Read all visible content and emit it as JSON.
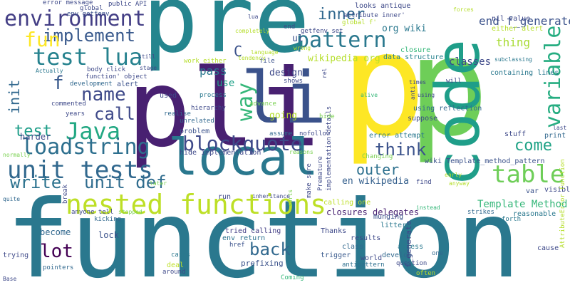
{
  "cloud": {
    "words": [
      {
        "text": "function",
        "color": "#2a788e",
        "vertical": false
      },
      {
        "text": "pli",
        "color": "#482071",
        "vertical": false
      },
      {
        "text": "pre",
        "color": "#25858e",
        "vertical": false
      },
      {
        "text": "p",
        "color": "#fde725",
        "vertical": false
      },
      {
        "text": "p",
        "color": "#6ece58",
        "vertical": false
      },
      {
        "text": "code",
        "color": "#1f9e89",
        "vertical": true
      },
      {
        "text": "local",
        "color": "#2a788e",
        "vertical": false
      },
      {
        "text": "li",
        "color": "#3b528b",
        "vertical": false
      },
      {
        "text": "nested functions",
        "color": "#bddf26",
        "vertical": false
      },
      {
        "text": "unit tests",
        "color": "#31688e",
        "vertical": false
      },
      {
        "text": "test lua",
        "color": "#26828e",
        "vertical": false
      },
      {
        "text": "environment",
        "color": "#433e85",
        "vertical": false
      },
      {
        "text": "Java",
        "color": "#23a883",
        "vertical": false
      },
      {
        "text": "blockquote",
        "color": "#3e4989",
        "vertical": false
      },
      {
        "text": "loadstring",
        "color": "#2d6f8e",
        "vertical": false
      },
      {
        "text": "table",
        "color": "#6ece58",
        "vertical": false
      },
      {
        "text": "variable",
        "color": "#26ad81",
        "vertical": true
      },
      {
        "text": "pattern",
        "color": "#2a788e",
        "vertical": false
      },
      {
        "text": "implement",
        "color": "#38598c",
        "vertical": false
      },
      {
        "text": "fun",
        "color": "#fde725",
        "vertical": false
      },
      {
        "text": "name",
        "color": "#3e4989",
        "vertical": false
      },
      {
        "text": "way",
        "color": "#35b779",
        "vertical": true
      },
      {
        "text": "think",
        "color": "#3b528b",
        "vertical": false
      },
      {
        "text": "back",
        "color": "#31688e",
        "vertical": false
      },
      {
        "text": "unit def",
        "color": "#2f6c8e",
        "vertical": false
      },
      {
        "text": "lot",
        "color": "#440154",
        "vertical": false
      },
      {
        "text": "call",
        "color": "#3e4989",
        "vertical": false
      },
      {
        "text": "inner",
        "color": "#31688e",
        "vertical": false
      },
      {
        "text": "outer",
        "color": "#2d708e",
        "vertical": false
      },
      {
        "text": "come",
        "color": "#20a386",
        "vertical": false
      },
      {
        "text": "end f_generate",
        "color": "#3b528b",
        "vertical": false
      },
      {
        "text": "write",
        "color": "#2c728e",
        "vertical": false
      },
      {
        "text": "test",
        "color": "#1f9e89",
        "vertical": false
      },
      {
        "text": "init",
        "color": "#31688e",
        "vertical": true
      },
      {
        "text": "f",
        "color": "#38598c",
        "vertical": false
      },
      {
        "text": "C",
        "color": "#3b528b",
        "vertical": false
      },
      {
        "text": "thing",
        "color": "#a8db34",
        "vertical": false
      },
      {
        "text": "Template Method",
        "color": "#35b779",
        "vertical": false
      },
      {
        "text": "classes",
        "color": "#3e4989",
        "vertical": false
      },
      {
        "text": "en wikipedia",
        "color": "#35608d",
        "vertical": false
      },
      {
        "text": "org wiki",
        "color": "#2a788e",
        "vertical": false
      },
      {
        "text": "wikipedia org",
        "color": "#b5de2b",
        "vertical": false
      },
      {
        "text": "closures delegates",
        "color": "#482071",
        "vertical": false
      },
      {
        "text": "design",
        "color": "#3e4989",
        "vertical": false
      },
      {
        "text": "pass",
        "color": "#2a788e",
        "vertical": false
      },
      {
        "text": "use",
        "color": "#1fa188",
        "vertical": false
      },
      {
        "text": "going",
        "color": "#b5de2b",
        "vertical": false
      },
      {
        "text": "harder",
        "color": "#3e4989",
        "vertical": false
      },
      {
        "text": "become",
        "color": "#31688e",
        "vertical": false
      },
      {
        "text": "lock",
        "color": "#3b528b",
        "vertical": false
      },
      {
        "text": "tried calling",
        "color": "#433e85",
        "vertical": false
      },
      {
        "text": "env return",
        "color": "#2c728e",
        "vertical": false
      },
      {
        "text": "prefixing",
        "color": "#3b528b",
        "vertical": false
      },
      {
        "text": "results",
        "color": "#3e4989",
        "vertical": false
      },
      {
        "text": "access",
        "color": "#2a788e",
        "vertical": false
      },
      {
        "text": "develop",
        "color": "#31688e",
        "vertical": false
      },
      {
        "text": "trigger",
        "color": "#38598c",
        "vertical": false
      },
      {
        "text": "world",
        "color": "#3e4989",
        "vertical": false
      },
      {
        "text": "antipattern",
        "color": "#2d708e",
        "vertical": false
      },
      {
        "text": "Thanks",
        "color": "#3e4989",
        "vertical": false
      },
      {
        "text": "class",
        "color": "#31688e",
        "vertical": false
      },
      {
        "text": "calling one",
        "color": "#bddf26",
        "vertical": false
      },
      {
        "text": "wiki Template_method_pattern",
        "color": "#3b528b",
        "vertical": false
      },
      {
        "text": "suppose",
        "color": "#3e4989",
        "vertical": false
      },
      {
        "text": "using reflection",
        "color": "#31688e",
        "vertical": false
      },
      {
        "text": "containing lines",
        "color": "#2a788e",
        "vertical": false
      },
      {
        "text": "data structure",
        "color": "#26828e",
        "vertical": false
      },
      {
        "text": "closure",
        "color": "#35b779",
        "vertical": false
      },
      {
        "text": "error attempt",
        "color": "#2a788e",
        "vertical": false
      },
      {
        "text": "stuff",
        "color": "#3e4989",
        "vertical": false
      },
      {
        "text": "print",
        "color": "#31688e",
        "vertical": false
      },
      {
        "text": "var",
        "color": "#3b528b",
        "vertical": false
      },
      {
        "text": "visible",
        "color": "#3e4989",
        "vertical": false
      },
      {
        "text": "reasonable",
        "color": "#2a788e",
        "vertical": false
      },
      {
        "text": "strikes",
        "color": "#31688e",
        "vertical": false
      },
      {
        "text": "cause",
        "color": "#3e4989",
        "vertical": false
      },
      {
        "text": "forth",
        "color": "#2a788e",
        "vertical": false
      },
      {
        "text": "question",
        "color": "#3e4989",
        "vertical": false
      },
      {
        "text": "f_generate",
        "color": "#3e4989",
        "vertical": true
      },
      {
        "text": "one",
        "color": "#31688e",
        "vertical": false
      },
      {
        "text": "often",
        "color": "#bddf26",
        "vertical": false
      },
      {
        "text": "munging",
        "color": "#3b528b",
        "vertical": false
      },
      {
        "text": "littered",
        "color": "#2a788e",
        "vertical": false
      },
      {
        "text": "Coming",
        "color": "#35b779",
        "vertical": false
      },
      {
        "text": "around",
        "color": "#3e4989",
        "vertical": false
      },
      {
        "text": "deal",
        "color": "#bddf26",
        "vertical": false
      },
      {
        "text": "pointers",
        "color": "#31688e",
        "vertical": false
      },
      {
        "text": "trying",
        "color": "#3e4989",
        "vertical": false
      },
      {
        "text": "cases",
        "color": "#2a788e",
        "vertical": false
      },
      {
        "text": "href",
        "color": "#3b528b",
        "vertical": false
      },
      {
        "text": "kicking",
        "color": "#31688e",
        "vertical": false
      },
      {
        "text": "anyone tell",
        "color": "#3e4989",
        "vertical": false
      },
      {
        "text": "stopped",
        "color": "#7ad151",
        "vertical": false
      },
      {
        "text": "quite",
        "color": "#31688e",
        "vertical": false
      },
      {
        "text": "normally",
        "color": "#7ad151",
        "vertical": false
      },
      {
        "text": "break",
        "color": "#3e4989",
        "vertical": true
      },
      {
        "text": "later",
        "color": "#7ad151",
        "vertical": false
      },
      {
        "text": "hide implementation",
        "color": "#3e4989",
        "vertical": false
      },
      {
        "text": "problem",
        "color": "#3b528b",
        "vertical": false
      },
      {
        "text": "unrelated",
        "color": "#31688e",
        "vertical": false
      },
      {
        "text": "hierarchy",
        "color": "#3e4989",
        "vertical": false
      },
      {
        "text": "process",
        "color": "#2a788e",
        "vertical": false
      },
      {
        "text": "realise",
        "color": "#31688e",
        "vertical": false
      },
      {
        "text": "used",
        "color": "#3e4989",
        "vertical": false
      },
      {
        "text": "advance",
        "color": "#7ad151",
        "vertical": false
      },
      {
        "text": "work either",
        "color": "#b5de2b",
        "vertical": false
      },
      {
        "text": "file",
        "color": "#3b528b",
        "vertical": false
      },
      {
        "text": "shows",
        "color": "#3e4989",
        "vertical": false
      },
      {
        "text": "assume",
        "color": "#31688e",
        "vertical": false
      },
      {
        "text": "nofollow",
        "color": "#3e4989",
        "vertical": false
      },
      {
        "text": "years",
        "color": "#3e4989",
        "vertical": false
      },
      {
        "text": "commented",
        "color": "#3e4989",
        "vertical": false
      },
      {
        "text": "alert",
        "color": "#3b528b",
        "vertical": false
      },
      {
        "text": "development",
        "color": "#31688e",
        "vertical": false
      },
      {
        "text": "function' object",
        "color": "#3e4989",
        "vertical": false
      },
      {
        "text": "body click",
        "color": "#3e4989",
        "vertical": false
      },
      {
        "text": "Actually",
        "color": "#2a788e",
        "vertical": false
      },
      {
        "text": "stage",
        "color": "#3e4989",
        "vertical": false
      },
      {
        "text": "still",
        "color": "#3e4989",
        "vertical": false
      },
      {
        "text": "env getfenv",
        "color": "#3b528b",
        "vertical": false
      },
      {
        "text": "public API",
        "color": "#3e4989",
        "vertical": false
      },
      {
        "text": "global",
        "color": "#3e4989",
        "vertical": false
      },
      {
        "text": "error message",
        "color": "#3e4989",
        "vertical": false
      },
      {
        "text": "lua",
        "color": "#3e4989",
        "vertical": false
      },
      {
        "text": "end",
        "color": "#3e4989",
        "vertical": false
      },
      {
        "text": "getfenv set",
        "color": "#3e4989",
        "vertical": false
      },
      {
        "text": "ul",
        "color": "#3b528b",
        "vertical": false
      },
      {
        "text": "looks antique",
        "color": "#3e4989",
        "vertical": false
      },
      {
        "text": "attribute inner'",
        "color": "#3e4989",
        "vertical": false
      },
      {
        "text": "global f'",
        "color": "#b5de2b",
        "vertical": false
      },
      {
        "text": "completely",
        "color": "#b5de2b",
        "vertical": false
      },
      {
        "text": "language",
        "color": "#b5de2b",
        "vertical": false
      },
      {
        "text": "tendency",
        "color": "#b5de2b",
        "vertical": false
      },
      {
        "text": "wrong",
        "color": "#b5de2b",
        "vertical": false
      },
      {
        "text": "forces",
        "color": "#b5de2b",
        "vertical": false
      },
      {
        "text": "nil value",
        "color": "#3e4989",
        "vertical": false
      },
      {
        "text": "either alert",
        "color": "#b5de2b",
        "vertical": false
      },
      {
        "text": "subclassing",
        "color": "#2a788e",
        "vertical": false
      },
      {
        "text": "last",
        "color": "#3e4989",
        "vertical": false
      },
      {
        "text": "alive",
        "color": "#35b779",
        "vertical": false
      },
      {
        "text": "times",
        "color": "#3e4989",
        "vertical": false
      },
      {
        "text": "will",
        "color": "#3e4989",
        "vertical": false
      },
      {
        "text": "using",
        "color": "#3e4989",
        "vertical": false
      },
      {
        "text": "early",
        "color": "#b5de2b",
        "vertical": false
      },
      {
        "text": "find",
        "color": "#3e4989",
        "vertical": false
      },
      {
        "text": "anyway",
        "color": "#b5de2b",
        "vertical": false
      },
      {
        "text": "instead",
        "color": "#35b779",
        "vertical": false
      },
      {
        "text": "sorts",
        "color": "#7ad151",
        "vertical": true
      },
      {
        "text": "inheritance",
        "color": "#3e4989",
        "vertical": false
      },
      {
        "text": "make sure",
        "color": "#3e4989",
        "vertical": true
      },
      {
        "text": "Premature",
        "color": "#3e4989",
        "vertical": true
      },
      {
        "text": "implementation details",
        "color": "#3e4989",
        "vertical": true
      },
      {
        "text": "Changing",
        "color": "#7ad151",
        "vertical": false
      },
      {
        "text": "reasons",
        "color": "#7ad151",
        "vertical": false
      },
      {
        "text": "hide",
        "color": "#7ad151",
        "vertical": false
      },
      {
        "text": "rel",
        "color": "#3e4989",
        "vertical": true
      },
      {
        "text": "anti",
        "color": "#3e4989",
        "vertical": true
      },
      {
        "text": "AttributeError function",
        "color": "#b5de2b",
        "vertical": true
      },
      {
        "text": "Base",
        "color": "#3e4989",
        "vertical": false
      },
      {
        "text": "run",
        "color": "#3e4989",
        "vertical": false
      }
    ]
  }
}
